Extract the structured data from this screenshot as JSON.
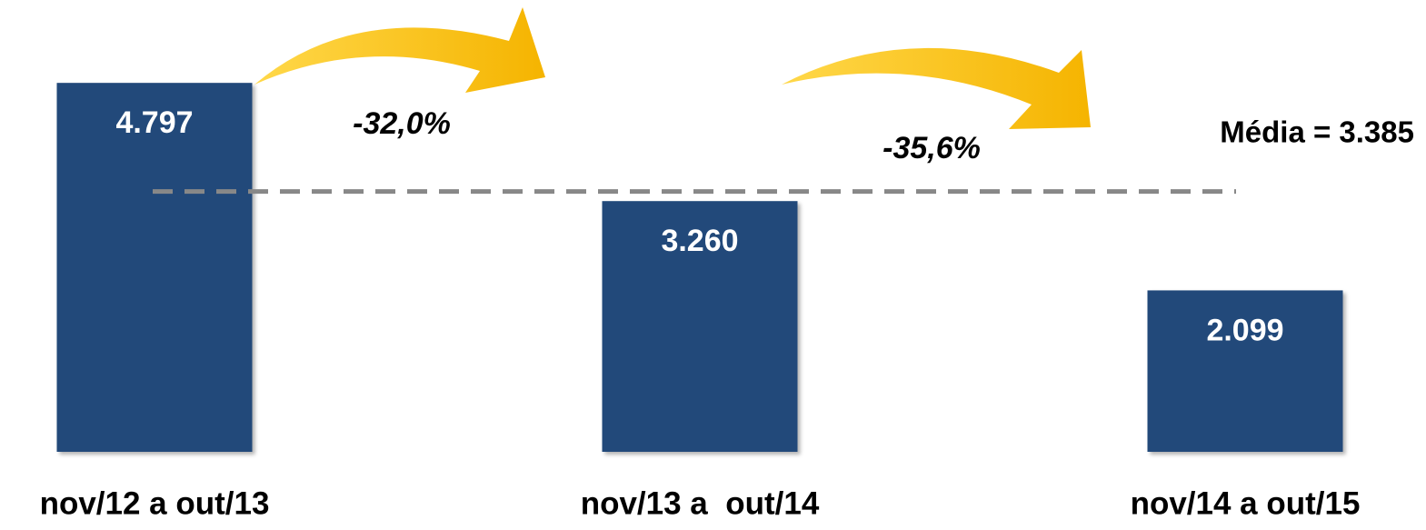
{
  "chart_data": {
    "type": "bar",
    "categories": [
      "nov/12 a out/13",
      "nov/13 a  out/14",
      "nov/14 a out/15"
    ],
    "values": [
      4797,
      3260,
      2099
    ],
    "value_labels": [
      "4.797",
      "3.260",
      "2.099"
    ],
    "color": "#22487a",
    "ylim": [
      0,
      5000
    ],
    "mean_line": {
      "value": 3385,
      "label": "Média = 3.385",
      "color": "#888888"
    },
    "annotations": [
      "-32,0%",
      "-35,6%"
    ]
  }
}
